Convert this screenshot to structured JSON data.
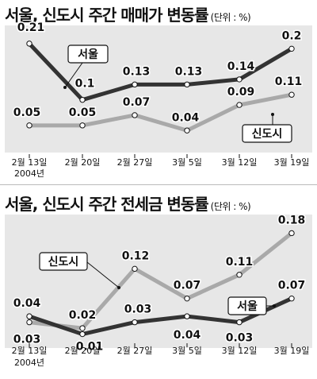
{
  "chart_data": [
    {
      "type": "line",
      "title": "서울, 신도시 주간 매매가 변동률",
      "unit_label": "(단위 : %)",
      "categories": [
        "2월 13일",
        "2월 20일",
        "2월 27일",
        "3월 5일",
        "3월 12일",
        "3월 19일"
      ],
      "year_label": "2004년",
      "ylim": [
        0,
        0.23
      ],
      "grid": false,
      "series": [
        {
          "name": "서울",
          "color": "#333333",
          "values": [
            0.21,
            0.1,
            0.13,
            0.13,
            0.14,
            0.2
          ],
          "labels": [
            "0.21",
            "0.1",
            "0.13",
            "0.13",
            "0.14",
            "0.2"
          ]
        },
        {
          "name": "신도시",
          "color": "#a9a9a9",
          "values": [
            0.05,
            0.05,
            0.07,
            0.04,
            0.09,
            0.11
          ],
          "labels": [
            "0.05",
            "0.05",
            "0.07",
            "0.04",
            "0.09",
            "0.11"
          ]
        }
      ]
    },
    {
      "type": "line",
      "title": "서울, 신도시 주간 전세금 변동률",
      "unit_label": "(단위 : %)",
      "categories": [
        "2월 13일",
        "2월 20일",
        "2월 27일",
        "3월 5일",
        "3월 12일",
        "3월 19일"
      ],
      "year_label": "2004년",
      "ylim": [
        0,
        0.19
      ],
      "grid": false,
      "series": [
        {
          "name": "신도시",
          "color": "#a9a9a9",
          "values": [
            0.03,
            0.02,
            0.12,
            0.07,
            0.11,
            0.18
          ],
          "labels": [
            "0.03",
            "0.02",
            "0.12",
            "0.07",
            "0.11",
            "0.18"
          ]
        },
        {
          "name": "서울",
          "color": "#333333",
          "values": [
            0.04,
            0.01,
            0.03,
            0.04,
            0.03,
            0.07
          ],
          "labels": [
            "0.04",
            "0.01",
            "0.03",
            "0.04",
            "0.03",
            "0.07"
          ]
        }
      ]
    }
  ]
}
